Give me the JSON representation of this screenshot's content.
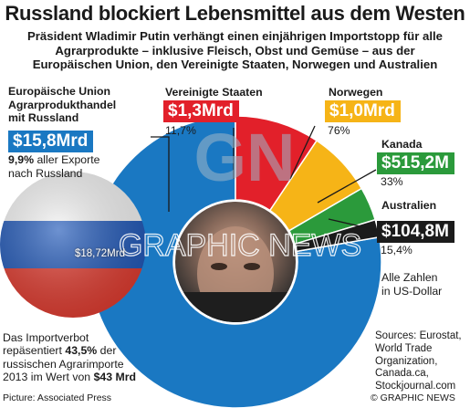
{
  "title": "Russland blockiert Lebensmittel aus dem Westen",
  "subtitle_lines": [
    "Präsident Wladimir Putin verhängt einen einjährigen Importstopp für alle",
    "Agrarprodukte – inklusive Fleisch, Obst und Gemüse – aus der",
    "Europäischen Union, den Vereinigte Staaten, Norwegen und Australien"
  ],
  "eu_label_lines": [
    "Europäische Union",
    "Agrarprodukthandel",
    "mit Russland"
  ],
  "eu_share_line_1_bold": "9,9%",
  "eu_share_line_1_rest": " aller Exporte",
  "eu_share_line_2": "nach Russland",
  "russia_flag_value": "$18,72Mrd",
  "note": {
    "line1": "Das Importverbot",
    "line2_pre": "repäsentiert ",
    "line2_bold": "43,5%",
    "line2_post": " der",
    "line3": "russischen Agrarimporte",
    "line4_pre": "2013 im Wert von ",
    "line4_bold": "$43 Mrd"
  },
  "units_note_lines": [
    "Alle Zahlen",
    "in US-Dollar"
  ],
  "sources_lines": [
    "Sources: Eurostat,",
    "World Trade",
    "Organization,",
    "Canada.ca,",
    "Stockjournal.com"
  ],
  "picture_credit": "Picture: Associated Press",
  "copyright": "© GRAPHIC NEWS",
  "watermark": "GRAPHIC NEWS",
  "watermark_logo": "GN",
  "colors": {
    "eu": "#1a78c2",
    "usa": "#e2202a",
    "norway": "#f6b417",
    "canada": "#2b9a3b",
    "australia": "#1b1b1b",
    "ring_back": "#d8d8d8"
  },
  "chart_data": {
    "type": "pie",
    "title": "Russland blockiert Lebensmittel aus dem Westen",
    "unit": "US-Dollar",
    "categories": [
      "Europäische Union",
      "Vereinigte Staaten",
      "Norwegen",
      "Kanada",
      "Australien"
    ],
    "series": [
      {
        "values_display": [
          "$15,8Mrd",
          "$1,3Mrd",
          "$1,0Mrd",
          "$515,2M",
          "$104,8M"
        ],
        "values_billion_usd": [
          15.8,
          1.3,
          1.0,
          0.5152,
          0.1048
        ],
        "shares_display": [
          "9,9%",
          "11,7%",
          "76%",
          "33%",
          "15,4%"
        ]
      }
    ],
    "annotations": [
      "Alle Zahlen in US-Dollar"
    ]
  }
}
